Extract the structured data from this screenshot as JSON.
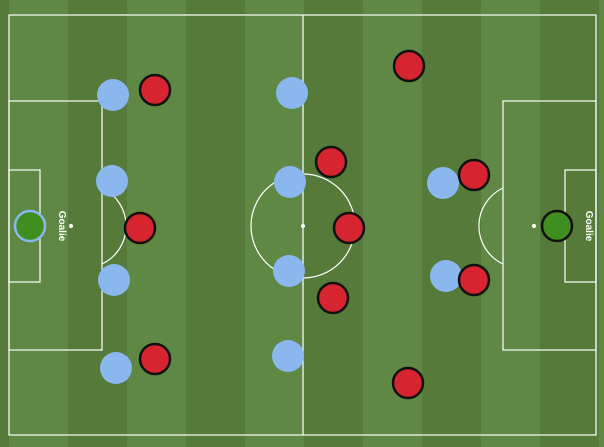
{
  "colors": {
    "stripe_light": "#5e8843",
    "stripe_dark": "#557a39",
    "lines": "#ffffff",
    "team_light_blue": "#8ab8ee",
    "team_red": "#d72530",
    "goalie_green": "#3e8f1f",
    "goalie_left_outline": "#8ab8ee",
    "goalie_right_outline": "#111111",
    "red_outline": "#111111"
  },
  "goalies": [
    {
      "side": "left",
      "label": "Goalie"
    },
    {
      "side": "right",
      "label": "Goalie"
    }
  ],
  "teams": [
    {
      "id": "light-blue",
      "color_key": "team_light_blue",
      "formation": [
        4,
        4,
        2
      ]
    },
    {
      "id": "red",
      "color_key": "team_red",
      "formation": [
        4,
        4,
        2
      ]
    }
  ]
}
